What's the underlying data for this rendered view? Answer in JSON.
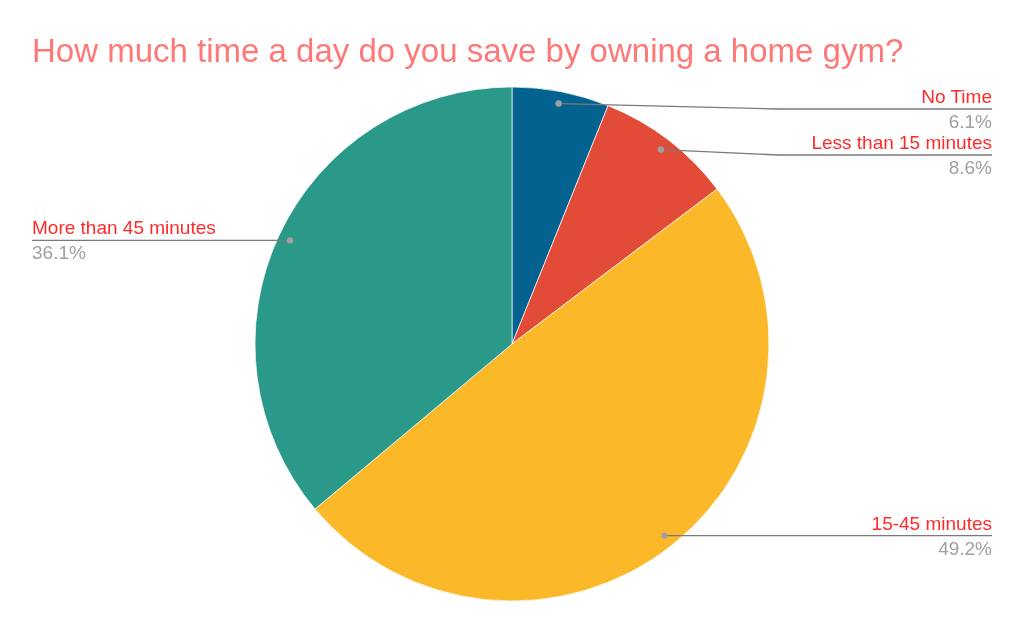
{
  "chart_data": {
    "type": "pie",
    "title": "How much time a day do you save by owning a home gym?",
    "categories": [
      "No Time",
      "Less than 15 minutes",
      "15-45 minutes",
      "More than 45 minutes"
    ],
    "values": [
      6.1,
      8.6,
      49.2,
      36.1
    ],
    "colors": [
      "#03628f",
      "#e14b38",
      "#fbb829",
      "#2a998a"
    ],
    "value_labels": [
      "6.1%",
      "8.6%",
      "49.2%",
      "36.1%"
    ]
  }
}
